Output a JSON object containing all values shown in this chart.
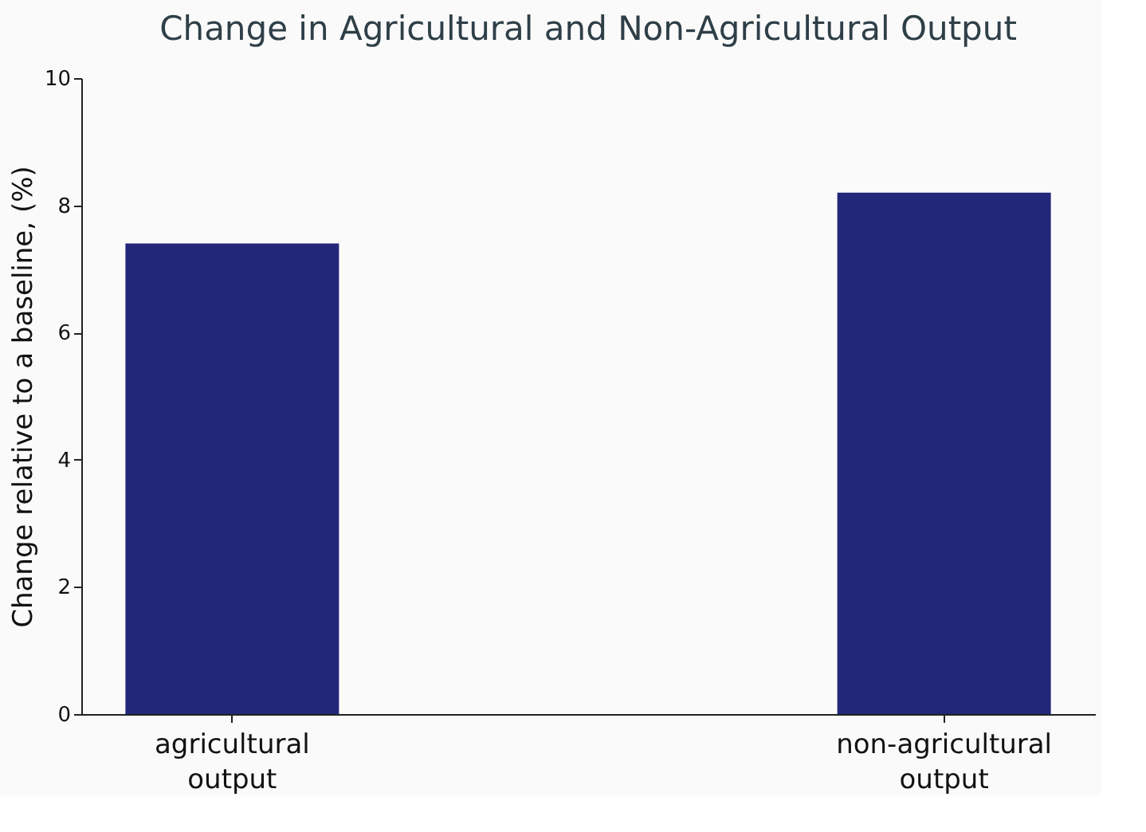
{
  "chart_data": {
    "type": "bar",
    "title": "Change in Agricultural and Non-Agricultural Output",
    "ylabel": "Change relative to a baseline, (%)",
    "categories": [
      "agricultural output",
      "non-agricultural output"
    ],
    "values": [
      7.4,
      8.2
    ],
    "color": "#22277a",
    "ylim": [
      0,
      10
    ],
    "yticks": [
      0,
      2,
      4,
      6,
      8,
      10
    ],
    "grid": false
  }
}
